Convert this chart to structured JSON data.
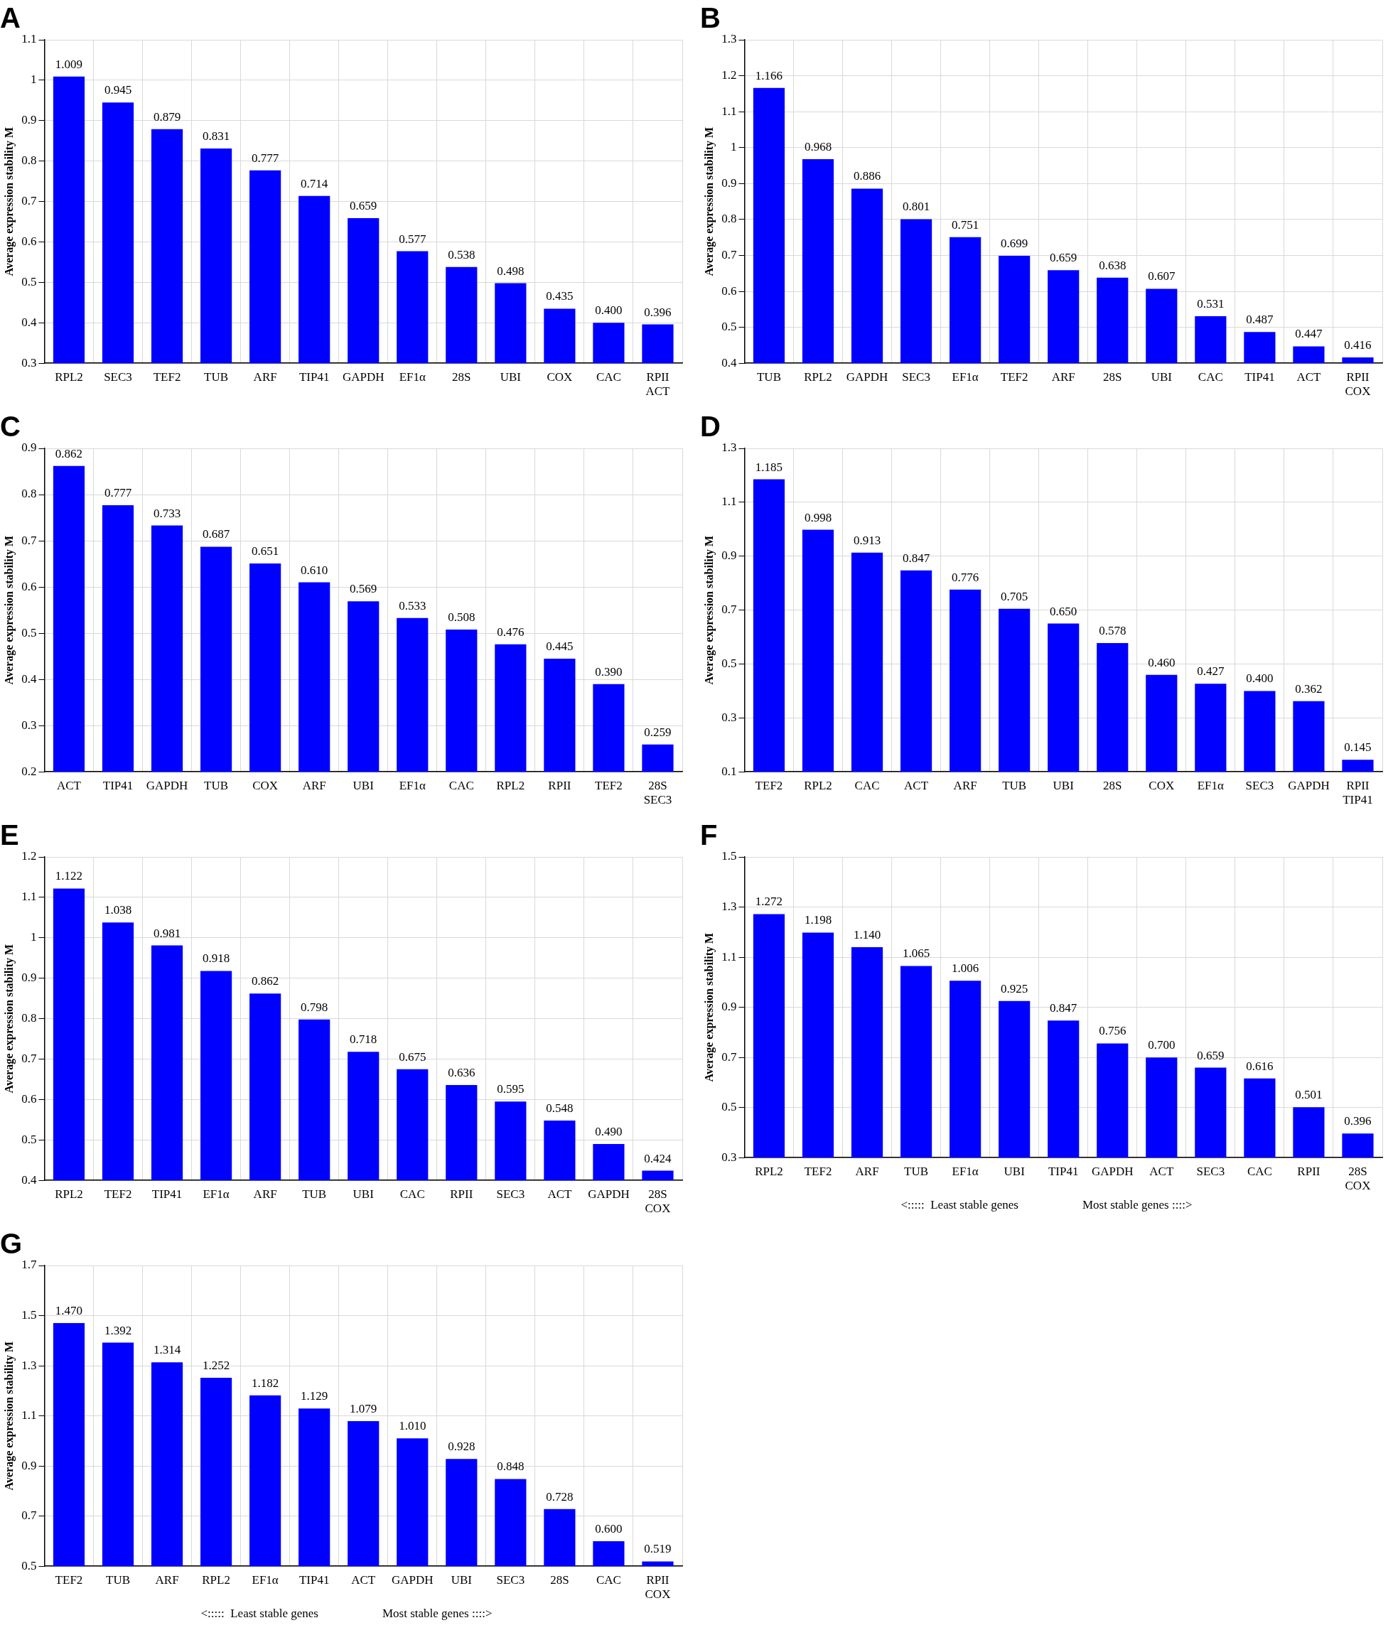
{
  "chart_data": [
    {
      "type": "bar",
      "title": "A",
      "ylabel": "Average expression stability M",
      "categories": [
        "RPL2",
        "SEC3",
        "TEF2",
        "TUB",
        "ARF",
        "TIP41",
        "GAPDH",
        "EF1α",
        "28S",
        "UBI",
        "COX",
        "CAC",
        "RPII\nACT"
      ],
      "values": [
        1.009,
        0.945,
        0.879,
        0.831,
        0.777,
        0.714,
        0.659,
        0.577,
        0.538,
        0.498,
        0.435,
        0.4,
        0.396
      ],
      "value_labels": [
        "1.009",
        "0.945",
        "0.879",
        "0.831",
        "0.777",
        "0.714",
        "0.659",
        "0.577",
        "0.538",
        "0.498",
        "0.435",
        "0.400",
        "0.396"
      ],
      "color": "#0000ff",
      "ylim": [
        0.3,
        1.1
      ],
      "yticks": [
        0.3,
        0.4,
        0.5,
        0.6,
        0.7,
        0.8,
        0.9,
        1,
        1.1
      ],
      "grid": true
    },
    {
      "type": "bar",
      "title": "B",
      "ylabel": "Average expression stability M",
      "categories": [
        "TUB",
        "RPL2",
        "GAPDH",
        "SEC3",
        "EF1α",
        "TEF2",
        "ARF",
        "28S",
        "UBI",
        "CAC",
        "TIP41",
        "ACT",
        "RPII\nCOX"
      ],
      "values": [
        1.166,
        0.968,
        0.886,
        0.801,
        0.751,
        0.699,
        0.659,
        0.638,
        0.607,
        0.531,
        0.487,
        0.447,
        0.416
      ],
      "value_labels": [
        "1.166",
        "0.968",
        "0.886",
        "0.801",
        "0.751",
        "0.699",
        "0.659",
        "0.638",
        "0.607",
        "0.531",
        "0.487",
        "0.447",
        "0.416"
      ],
      "color": "#0000ff",
      "ylim": [
        0.4,
        1.3
      ],
      "yticks": [
        0.4,
        0.5,
        0.6,
        0.7,
        0.8,
        0.9,
        1,
        1.1,
        1.2,
        1.3
      ],
      "grid": true
    },
    {
      "type": "bar",
      "title": "C",
      "ylabel": "Average expression stability M",
      "categories": [
        "ACT",
        "TIP41",
        "GAPDH",
        "TUB",
        "COX",
        "ARF",
        "UBI",
        "EF1α",
        "CAC",
        "RPL2",
        "RPII",
        "TEF2",
        "28S\nSEC3"
      ],
      "values": [
        0.862,
        0.777,
        0.733,
        0.687,
        0.651,
        0.61,
        0.569,
        0.533,
        0.508,
        0.476,
        0.445,
        0.39,
        0.259
      ],
      "value_labels": [
        "0.862",
        "0.777",
        "0.733",
        "0.687",
        "0.651",
        "0.610",
        "0.569",
        "0.533",
        "0.508",
        "0.476",
        "0.445",
        "0.390",
        "0.259"
      ],
      "color": "#0000ff",
      "ylim": [
        0.2,
        0.9
      ],
      "yticks": [
        0.2,
        0.3,
        0.4,
        0.5,
        0.6,
        0.7,
        0.8,
        0.9
      ],
      "grid": true
    },
    {
      "type": "bar",
      "title": "D",
      "ylabel": "Average expression stability M",
      "categories": [
        "TEF2",
        "RPL2",
        "CAC",
        "ACT",
        "ARF",
        "TUB",
        "UBI",
        "28S",
        "COX",
        "EF1α",
        "SEC3",
        "GAPDH",
        "RPII\nTIP41"
      ],
      "values": [
        1.185,
        0.998,
        0.913,
        0.847,
        0.776,
        0.705,
        0.65,
        0.578,
        0.46,
        0.427,
        0.4,
        0.362,
        0.145
      ],
      "value_labels": [
        "1.185",
        "0.998",
        "0.913",
        "0.847",
        "0.776",
        "0.705",
        "0.650",
        "0.578",
        "0.460",
        "0.427",
        "0.400",
        "0.362",
        "0.145"
      ],
      "color": "#0000ff",
      "ylim": [
        0.1,
        1.3
      ],
      "yticks": [
        0.1,
        0.3,
        0.5,
        0.7,
        0.9,
        1.1,
        1.3
      ],
      "grid": true
    },
    {
      "type": "bar",
      "title": "E",
      "ylabel": "Average expression stability M",
      "categories": [
        "RPL2",
        "TEF2",
        "TIP41",
        "EF1α",
        "ARF",
        "TUB",
        "UBI",
        "CAC",
        "RPII",
        "SEC3",
        "ACT",
        "GAPDH",
        "28S\nCOX"
      ],
      "values": [
        1.122,
        1.038,
        0.981,
        0.918,
        0.862,
        0.798,
        0.718,
        0.675,
        0.636,
        0.595,
        0.548,
        0.49,
        0.424
      ],
      "value_labels": [
        "1.122",
        "1.038",
        "0.981",
        "0.918",
        "0.862",
        "0.798",
        "0.718",
        "0.675",
        "0.636",
        "0.595",
        "0.548",
        "0.490",
        "0.424"
      ],
      "color": "#0000ff",
      "ylim": [
        0.4,
        1.2
      ],
      "yticks": [
        0.4,
        0.5,
        0.6,
        0.7,
        0.8,
        0.9,
        1,
        1.1,
        1.2
      ],
      "grid": true
    },
    {
      "type": "bar",
      "title": "F",
      "ylabel": "Average expression stability M",
      "categories": [
        "RPL2",
        "TEF2",
        "ARF",
        "TUB",
        "EF1α",
        "UBI",
        "TIP41",
        "GAPDH",
        "ACT",
        "SEC3",
        "CAC",
        "RPII",
        "28S\nCOX"
      ],
      "values": [
        1.272,
        1.198,
        1.14,
        1.065,
        1.006,
        0.925,
        0.847,
        0.756,
        0.7,
        0.659,
        0.616,
        0.501,
        0.396
      ],
      "value_labels": [
        "1.272",
        "1.198",
        "1.140",
        "1.065",
        "1.006",
        "0.925",
        "0.847",
        "0.756",
        "0.700",
        "0.659",
        "0.616",
        "0.501",
        "0.396"
      ],
      "color": "#0000ff",
      "ylim": [
        0.3,
        1.5
      ],
      "yticks": [
        0.3,
        0.5,
        0.7,
        0.9,
        1.1,
        1.3,
        1.5
      ],
      "grid": true,
      "annotations": [
        "<:::::  Least stable genes",
        "Most stable genes ::::>"
      ]
    },
    {
      "type": "bar",
      "title": "G",
      "ylabel": "Average expression stability M",
      "categories": [
        "TEF2",
        "TUB",
        "ARF",
        "RPL2",
        "EF1α",
        "TIP41",
        "ACT",
        "GAPDH",
        "UBI",
        "SEC3",
        "28S",
        "CAC",
        "RPII\nCOX"
      ],
      "values": [
        1.47,
        1.392,
        1.314,
        1.252,
        1.182,
        1.129,
        1.079,
        1.01,
        0.928,
        0.848,
        0.728,
        0.6,
        0.519
      ],
      "value_labels": [
        "1.470",
        "1.392",
        "1.314",
        "1.252",
        "1.182",
        "1.129",
        "1.079",
        "1.010",
        "0.928",
        "0.848",
        "0.728",
        "0.600",
        "0.519"
      ],
      "color": "#0000ff",
      "ylim": [
        0.5,
        1.7
      ],
      "yticks": [
        0.5,
        0.7,
        0.9,
        1.1,
        1.3,
        1.5,
        1.7
      ],
      "grid": true,
      "annotations": [
        "<:::::  Least stable genes",
        "Most stable genes ::::>"
      ]
    }
  ]
}
